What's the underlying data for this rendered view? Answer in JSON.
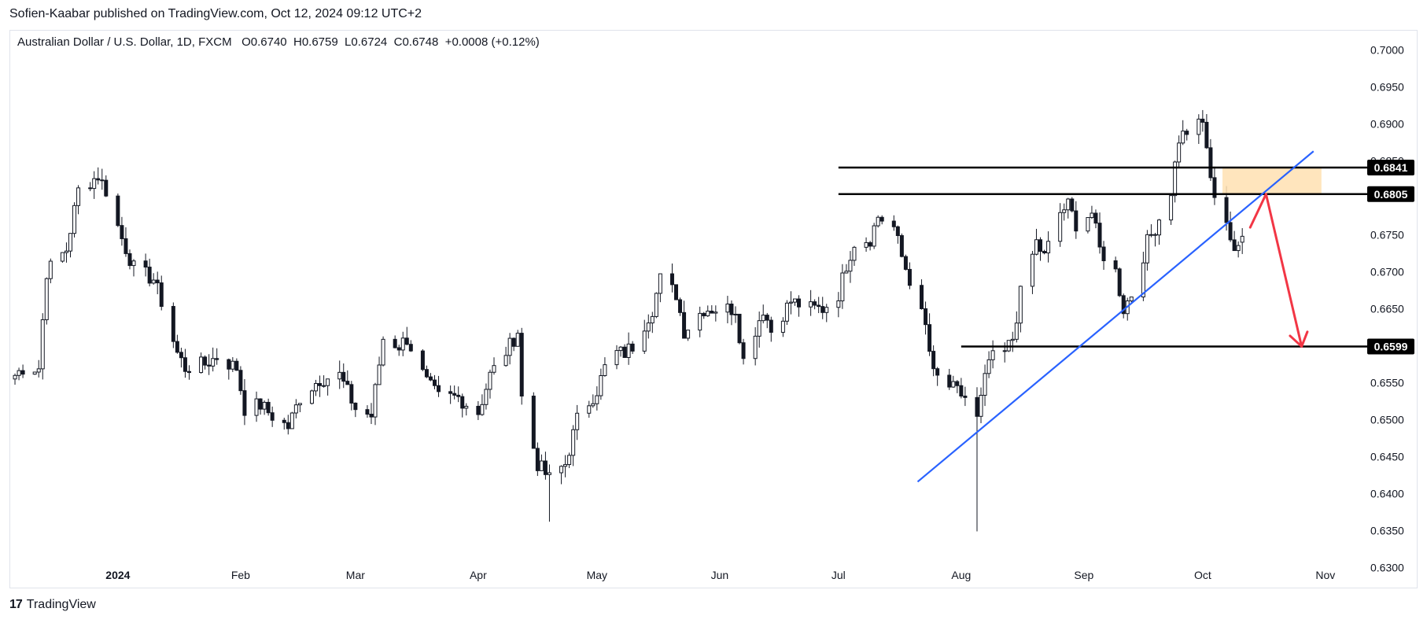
{
  "header": {
    "publisher": "Sofien-Kaabar published on TradingView.com, Oct 12, 2024 09:12 UTC+2"
  },
  "symbol": {
    "name": "Australian Dollar / U.S. Dollar, 1D, FXCM",
    "o": "O0.6740",
    "h": "H0.6759",
    "l": "L0.6724",
    "c": "C0.6748",
    "change": "+0.0008 (+0.12%)"
  },
  "footer": {
    "brand": "TradingView"
  },
  "colors": {
    "candle": "#131722",
    "trendline": "#2962ff",
    "arrow": "#f23645",
    "zone": "#ffe0b2"
  },
  "chart_data": {
    "type": "candlestick",
    "title": "",
    "xlabel": "",
    "ylabel": "",
    "ylim": [
      0.6275,
      0.7025
    ],
    "x_range": [
      "2023-12-05",
      "2024-11-05"
    ],
    "y_ticks": [
      "0.6300",
      "0.6350",
      "0.6400",
      "0.6450",
      "0.6500",
      "0.6550",
      "0.6600",
      "0.6650",
      "0.6700",
      "0.6750",
      "0.6800",
      "0.6850",
      "0.6900",
      "0.6950",
      "0.7000"
    ],
    "x_ticks": [
      {
        "label": "2024",
        "date": "2024-01-01",
        "bold": true
      },
      {
        "label": "Feb",
        "date": "2024-02-01"
      },
      {
        "label": "Mar",
        "date": "2024-03-01"
      },
      {
        "label": "Apr",
        "date": "2024-04-01"
      },
      {
        "label": "May",
        "date": "2024-05-01"
      },
      {
        "label": "Jun",
        "date": "2024-06-01"
      },
      {
        "label": "Jul",
        "date": "2024-07-01"
      },
      {
        "label": "Aug",
        "date": "2024-08-01"
      },
      {
        "label": "Sep",
        "date": "2024-09-01"
      },
      {
        "label": "Oct",
        "date": "2024-10-01"
      },
      {
        "label": "Nov",
        "date": "2024-11-01"
      }
    ],
    "waypoints": [
      [
        "2023-12-05",
        0.6555
      ],
      [
        "2023-12-08",
        0.657
      ],
      [
        "2023-12-12",
        0.657
      ],
      [
        "2023-12-14",
        0.67
      ],
      [
        "2023-12-19",
        0.673
      ],
      [
        "2023-12-22",
        0.681
      ],
      [
        "2023-12-27",
        0.683
      ],
      [
        "2023-12-29",
        0.681
      ],
      [
        "2024-01-02",
        0.6745
      ],
      [
        "2024-01-05",
        0.6705
      ],
      [
        "2024-01-10",
        0.669
      ],
      [
        "2024-01-12",
        0.666
      ],
      [
        "2024-01-16",
        0.659
      ],
      [
        "2024-01-18",
        0.657
      ],
      [
        "2024-01-23",
        0.6575
      ],
      [
        "2024-01-26",
        0.6585
      ],
      [
        "2024-01-31",
        0.657
      ],
      [
        "2024-02-02",
        0.6515
      ],
      [
        "2024-02-06",
        0.652
      ],
      [
        "2024-02-09",
        0.6505
      ],
      [
        "2024-02-13",
        0.649
      ],
      [
        "2024-02-16",
        0.653
      ],
      [
        "2024-02-21",
        0.6555
      ],
      [
        "2024-02-26",
        0.656
      ],
      [
        "2024-03-01",
        0.6515
      ],
      [
        "2024-03-05",
        0.6505
      ],
      [
        "2024-03-08",
        0.661
      ],
      [
        "2024-03-12",
        0.66
      ],
      [
        "2024-03-14",
        0.661
      ],
      [
        "2024-03-19",
        0.655
      ],
      [
        "2024-03-22",
        0.653
      ],
      [
        "2024-03-27",
        0.653
      ],
      [
        "2024-04-01",
        0.651
      ],
      [
        "2024-04-04",
        0.656
      ],
      [
        "2024-04-09",
        0.66
      ],
      [
        "2024-04-11",
        0.662
      ],
      [
        "2024-04-12",
        0.653
      ],
      [
        "2024-04-16",
        0.644
      ],
      [
        "2024-04-19",
        0.642
      ],
      [
        "2024-04-23",
        0.644
      ],
      [
        "2024-04-26",
        0.65
      ],
      [
        "2024-05-01",
        0.654
      ],
      [
        "2024-05-03",
        0.657
      ],
      [
        "2024-05-06",
        0.659
      ],
      [
        "2024-05-08",
        0.659
      ],
      [
        "2024-05-10",
        0.66
      ],
      [
        "2024-05-15",
        0.665
      ],
      [
        "2024-05-17",
        0.669
      ],
      [
        "2024-05-21",
        0.667
      ],
      [
        "2024-05-23",
        0.662
      ],
      [
        "2024-05-28",
        0.665
      ],
      [
        "2024-05-31",
        0.665
      ],
      [
        "2024-06-05",
        0.665
      ],
      [
        "2024-06-07",
        0.658
      ],
      [
        "2024-06-12",
        0.665
      ],
      [
        "2024-06-14",
        0.662
      ],
      [
        "2024-06-19",
        0.666
      ],
      [
        "2024-06-24",
        0.665
      ],
      [
        "2024-06-27",
        0.665
      ],
      [
        "2024-07-01",
        0.667
      ],
      [
        "2024-07-03",
        0.671
      ],
      [
        "2024-07-05",
        0.674
      ],
      [
        "2024-07-09",
        0.6745
      ],
      [
        "2024-07-11",
        0.6775
      ],
      [
        "2024-07-15",
        0.676
      ],
      [
        "2024-07-17",
        0.672
      ],
      [
        "2024-07-19",
        0.669
      ],
      [
        "2024-07-23",
        0.6625
      ],
      [
        "2024-07-25",
        0.656
      ],
      [
        "2024-07-29",
        0.6545
      ],
      [
        "2024-08-02",
        0.653
      ],
      [
        "2024-08-05",
        0.65
      ],
      [
        "2024-08-08",
        0.658
      ],
      [
        "2024-08-12",
        0.659
      ],
      [
        "2024-08-14",
        0.661
      ],
      [
        "2024-08-16",
        0.667
      ],
      [
        "2024-08-20",
        0.674
      ],
      [
        "2024-08-22",
        0.672
      ],
      [
        "2024-08-26",
        0.678
      ],
      [
        "2024-08-28",
        0.679
      ],
      [
        "2024-08-30",
        0.6765
      ],
      [
        "2024-09-03",
        0.678
      ],
      [
        "2024-09-05",
        0.673
      ],
      [
        "2024-09-09",
        0.67
      ],
      [
        "2024-09-11",
        0.665
      ],
      [
        "2024-09-13",
        0.667
      ],
      [
        "2024-09-17",
        0.674
      ],
      [
        "2024-09-19",
        0.676
      ],
      [
        "2024-09-23",
        0.681
      ],
      [
        "2024-09-25",
        0.688
      ],
      [
        "2024-09-27",
        0.689
      ],
      [
        "2024-10-01",
        0.69
      ],
      [
        "2024-10-02",
        0.687
      ],
      [
        "2024-10-03",
        0.682
      ],
      [
        "2024-10-07",
        0.677
      ],
      [
        "2024-10-09",
        0.672
      ],
      [
        "2024-10-11",
        0.6748
      ]
    ],
    "levels": [
      {
        "label": "0.6841",
        "value": 0.6841,
        "from": "2024-07-01"
      },
      {
        "label": "0.6805",
        "value": 0.6805,
        "from": "2024-07-01"
      },
      {
        "label": "0.6599",
        "value": 0.6599,
        "from": "2024-08-01"
      }
    ],
    "zone": {
      "from": "2024-10-06",
      "to": "2024-10-31",
      "low": 0.6805,
      "high": 0.6841
    },
    "trendline": {
      "from": [
        "2024-07-21",
        0.6416
      ],
      "to": [
        "2024-10-29",
        0.6863
      ]
    },
    "arrows": [
      {
        "from": [
          "2024-10-13",
          0.676
        ],
        "to": [
          "2024-10-17",
          0.6805
        ]
      },
      {
        "from": [
          "2024-10-17",
          0.6805
        ],
        "to": [
          "2024-10-26",
          0.6599
        ]
      }
    ]
  }
}
